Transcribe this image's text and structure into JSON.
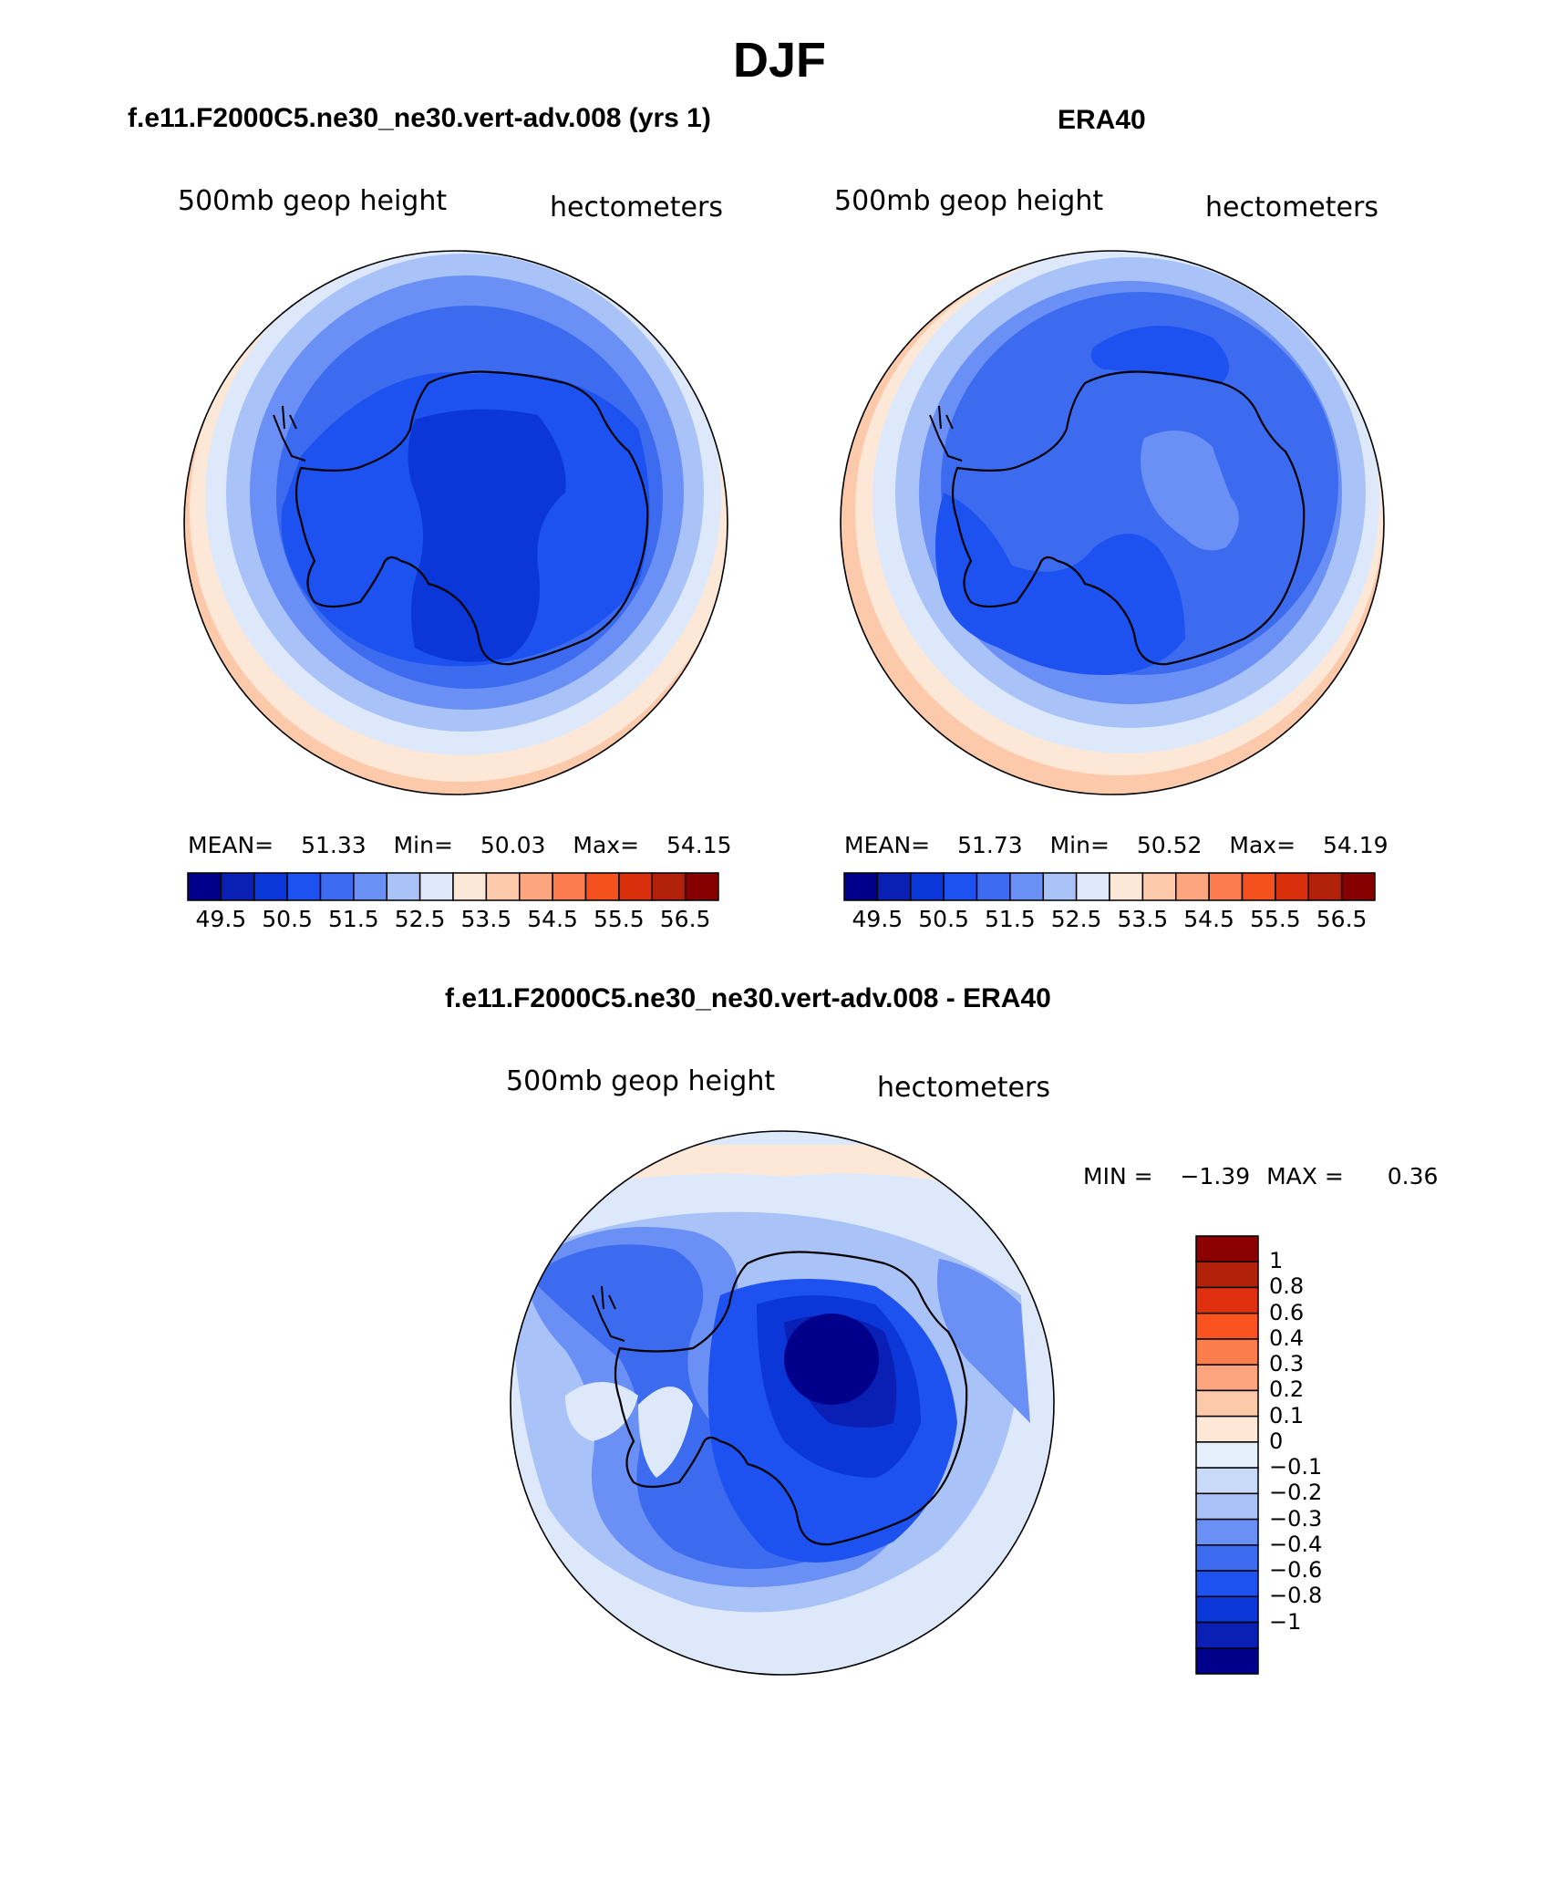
{
  "page": {
    "season": "DJF"
  },
  "panels": [
    {
      "title": "f.e11.F2000C5.ne30_ne30.vert-adv.008 (yrs 1)",
      "left_label": "500mb geop height",
      "right_label": "hectometers",
      "stats": {
        "mean_label": "MEAN=",
        "mean": "51.33",
        "min_label": "Min=",
        "min": "50.03",
        "max_label": "Max=",
        "max": "54.15"
      }
    },
    {
      "title": "ERA40",
      "left_label": "500mb geop height",
      "right_label": "hectometers",
      "stats": {
        "mean_label": "MEAN=",
        "mean": "51.73",
        "min_label": "Min=",
        "min": "50.52",
        "max_label": "Max=",
        "max": "54.19"
      }
    },
    {
      "title": "f.e11.F2000C5.ne30_ne30.vert-adv.008 - ERA40",
      "left_label": "500mb geop height",
      "right_label": "hectometers",
      "stats": {
        "min_label": "MIN =",
        "min": "−1.39",
        "max_label": "MAX =",
        "max": "0.36"
      }
    }
  ],
  "colorbar_horizontal": {
    "colors": [
      "#00008b",
      "#0a1fb4",
      "#0b37d8",
      "#1d52f0",
      "#3c6bf0",
      "#6a8ff5",
      "#a9c2f8",
      "#dde9fb",
      "#fde8d8",
      "#fcc9aa",
      "#fca57f",
      "#fb7b4e",
      "#f4511f",
      "#d9300c",
      "#b2220b",
      "#850000"
    ],
    "labels": [
      "49.5",
      "50.5",
      "51.5",
      "52.5",
      "53.5",
      "54.5",
      "55.5",
      "56.5"
    ]
  },
  "colorbar_vertical": {
    "colors_top_to_bottom": [
      "#8b0000",
      "#b2220b",
      "#e03010",
      "#fb531f",
      "#fc7d4c",
      "#fca57f",
      "#fcc9aa",
      "#fde8d8",
      "#e4effb",
      "#c8daf8",
      "#a9c2f8",
      "#6a8ff5",
      "#3c6bf0",
      "#1d52f0",
      "#0b37d8",
      "#0a1fb4",
      "#00008b"
    ],
    "labels": [
      "1",
      "0.8",
      "0.6",
      "0.4",
      "0.3",
      "0.2",
      "0.1",
      "0",
      "−0.1",
      "−0.2",
      "−0.3",
      "−0.4",
      "−0.6",
      "−0.8",
      "−1"
    ]
  }
}
